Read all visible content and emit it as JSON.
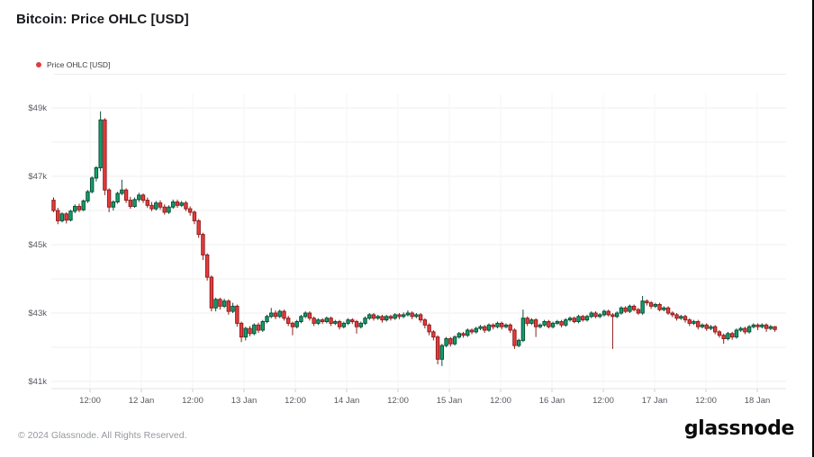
{
  "page": {
    "title": "Bitcoin: Price OHLC [USD]"
  },
  "legend": {
    "label": "Price OHLC [USD]"
  },
  "footer": {
    "copyright": "© 2024 Glassnode. All Rights Reserved.",
    "brand": "glassnode"
  },
  "chart_data": {
    "type": "candlestick",
    "title": "Bitcoin: Price OHLC [USD]",
    "units": "USD, values in thousands (k)",
    "interval": "1 hour",
    "start_time": "11 Jan 03:00",
    "y_ticks": [
      "$49k",
      "$47k",
      "$45k",
      "$43k",
      "$41k"
    ],
    "y_tick_values": [
      49,
      47,
      45,
      43,
      41
    ],
    "ylim": [
      40.8,
      49.3
    ],
    "grid": "on",
    "legend_position": "top-left",
    "x_ticks": [
      "12:00",
      "12 Jan",
      "12:00",
      "13 Jan",
      "12:00",
      "14 Jan",
      "12:00",
      "15 Jan",
      "12:00",
      "16 Jan",
      "12:00",
      "17 Jan",
      "12:00",
      "18 Jan"
    ],
    "colors": {
      "up_fill": "#149f6d",
      "up_border": "#0b5038",
      "down_fill": "#e83c3c",
      "down_border": "#8f1e1e",
      "legend_dot": "#e13c3c"
    },
    "candles": [
      [
        46.3,
        46.38,
        45.95,
        46.0
      ],
      [
        46.0,
        46.08,
        45.6,
        45.7
      ],
      [
        45.7,
        45.95,
        45.65,
        45.9
      ],
      [
        45.9,
        45.95,
        45.62,
        45.72
      ],
      [
        45.72,
        46.02,
        45.68,
        45.98
      ],
      [
        45.98,
        46.18,
        45.92,
        46.12
      ],
      [
        46.12,
        46.2,
        45.95,
        46.02
      ],
      [
        46.02,
        46.32,
        45.98,
        46.28
      ],
      [
        46.28,
        46.6,
        46.22,
        46.55
      ],
      [
        46.55,
        47.0,
        46.5,
        46.95
      ],
      [
        46.95,
        47.3,
        46.85,
        47.25
      ],
      [
        47.25,
        48.9,
        47.15,
        48.65
      ],
      [
        48.65,
        48.7,
        46.45,
        46.6
      ],
      [
        46.6,
        46.65,
        45.95,
        46.1
      ],
      [
        46.1,
        46.3,
        46.0,
        46.25
      ],
      [
        46.25,
        46.55,
        46.2,
        46.5
      ],
      [
        46.5,
        46.9,
        46.45,
        46.6
      ],
      [
        46.6,
        46.65,
        46.22,
        46.3
      ],
      [
        46.3,
        46.4,
        46.05,
        46.12
      ],
      [
        46.12,
        46.38,
        46.08,
        46.32
      ],
      [
        46.32,
        46.52,
        46.25,
        46.45
      ],
      [
        46.45,
        46.5,
        46.22,
        46.3
      ],
      [
        46.3,
        46.38,
        46.08,
        46.15
      ],
      [
        46.15,
        46.25,
        45.98,
        46.05
      ],
      [
        46.05,
        46.28,
        46.0,
        46.22
      ],
      [
        46.22,
        46.3,
        46.02,
        46.1
      ],
      [
        46.1,
        46.18,
        45.88,
        45.95
      ],
      [
        45.95,
        46.15,
        45.9,
        46.1
      ],
      [
        46.1,
        46.32,
        46.05,
        46.25
      ],
      [
        46.25,
        46.32,
        46.08,
        46.15
      ],
      [
        46.15,
        46.28,
        46.1,
        46.22
      ],
      [
        46.22,
        46.28,
        45.98,
        46.05
      ],
      [
        46.05,
        46.12,
        45.85,
        45.95
      ],
      [
        45.95,
        46.0,
        45.6,
        45.7
      ],
      [
        45.7,
        45.75,
        45.2,
        45.3
      ],
      [
        45.3,
        45.35,
        44.55,
        44.7
      ],
      [
        44.7,
        44.75,
        43.95,
        44.05
      ],
      [
        44.05,
        44.1,
        43.05,
        43.15
      ],
      [
        43.15,
        43.45,
        43.05,
        43.4
      ],
      [
        43.4,
        43.45,
        43.1,
        43.2
      ],
      [
        43.2,
        43.42,
        43.15,
        43.35
      ],
      [
        43.35,
        43.4,
        42.95,
        43.05
      ],
      [
        43.05,
        43.3,
        43.0,
        43.2
      ],
      [
        43.2,
        43.25,
        42.6,
        42.7
      ],
      [
        42.7,
        42.75,
        42.15,
        42.3
      ],
      [
        42.3,
        42.6,
        42.2,
        42.55
      ],
      [
        42.55,
        42.62,
        42.32,
        42.4
      ],
      [
        42.4,
        42.7,
        42.35,
        42.65
      ],
      [
        42.65,
        42.72,
        42.42,
        42.5
      ],
      [
        42.5,
        42.8,
        42.45,
        42.75
      ],
      [
        42.75,
        42.95,
        42.7,
        42.9
      ],
      [
        42.9,
        43.15,
        42.85,
        43.0
      ],
      [
        43.0,
        43.08,
        42.82,
        42.9
      ],
      [
        42.9,
        43.1,
        42.85,
        43.05
      ],
      [
        43.05,
        43.1,
        42.78,
        42.85
      ],
      [
        42.85,
        42.92,
        42.62,
        42.7
      ],
      [
        42.7,
        42.75,
        42.35,
        42.6
      ],
      [
        42.6,
        42.8,
        42.55,
        42.75
      ],
      [
        42.75,
        42.95,
        42.7,
        42.9
      ],
      [
        42.9,
        43.05,
        42.85,
        43.0
      ],
      [
        43.0,
        43.05,
        42.78,
        42.85
      ],
      [
        42.85,
        42.9,
        42.62,
        42.7
      ],
      [
        42.7,
        42.85,
        42.65,
        42.8
      ],
      [
        42.8,
        42.85,
        42.68,
        42.75
      ],
      [
        42.75,
        42.9,
        42.7,
        42.85
      ],
      [
        42.85,
        42.9,
        42.62,
        42.7
      ],
      [
        42.7,
        42.8,
        42.65,
        42.75
      ],
      [
        42.75,
        42.8,
        42.52,
        42.6
      ],
      [
        42.6,
        42.75,
        42.55,
        42.7
      ],
      [
        42.7,
        42.85,
        42.65,
        42.8
      ],
      [
        42.8,
        42.85,
        42.68,
        42.75
      ],
      [
        42.75,
        42.8,
        42.4,
        42.6
      ],
      [
        42.6,
        42.75,
        42.55,
        42.7
      ],
      [
        42.7,
        42.9,
        42.65,
        42.85
      ],
      [
        42.85,
        43.0,
        42.8,
        42.95
      ],
      [
        42.95,
        43.0,
        42.78,
        42.85
      ],
      [
        42.85,
        42.95,
        42.8,
        42.9
      ],
      [
        42.9,
        42.95,
        42.72,
        42.8
      ],
      [
        42.8,
        42.95,
        42.75,
        42.9
      ],
      [
        42.9,
        42.95,
        42.78,
        42.85
      ],
      [
        42.85,
        43.0,
        42.8,
        42.95
      ],
      [
        42.95,
        43.0,
        42.82,
        42.9
      ],
      [
        42.9,
        43.02,
        42.85,
        42.95
      ],
      [
        42.95,
        43.08,
        42.9,
        43.0
      ],
      [
        43.0,
        43.05,
        42.82,
        42.9
      ],
      [
        42.9,
        43.0,
        42.85,
        42.95
      ],
      [
        42.95,
        43.0,
        42.72,
        42.8
      ],
      [
        42.8,
        42.85,
        42.55,
        42.65
      ],
      [
        42.65,
        42.7,
        42.35,
        42.45
      ],
      [
        42.45,
        42.5,
        42.2,
        42.3
      ],
      [
        42.3,
        42.35,
        41.5,
        41.65
      ],
      [
        41.65,
        42.1,
        41.45,
        42.05
      ],
      [
        42.05,
        42.3,
        42.0,
        42.25
      ],
      [
        42.25,
        42.3,
        42.02,
        42.1
      ],
      [
        42.1,
        42.35,
        42.05,
        42.3
      ],
      [
        42.3,
        42.45,
        42.25,
        42.4
      ],
      [
        42.4,
        42.45,
        42.28,
        42.35
      ],
      [
        42.35,
        42.55,
        42.3,
        42.5
      ],
      [
        42.5,
        42.55,
        42.38,
        42.45
      ],
      [
        42.45,
        42.6,
        42.4,
        42.55
      ],
      [
        42.55,
        42.65,
        42.5,
        42.6
      ],
      [
        42.6,
        42.65,
        42.42,
        42.5
      ],
      [
        42.5,
        42.7,
        42.45,
        42.65
      ],
      [
        42.65,
        42.7,
        42.52,
        42.6
      ],
      [
        42.6,
        42.75,
        42.55,
        42.7
      ],
      [
        42.7,
        42.75,
        42.52,
        42.6
      ],
      [
        42.6,
        42.7,
        42.55,
        42.65
      ],
      [
        42.65,
        42.7,
        42.42,
        42.5
      ],
      [
        42.5,
        42.55,
        41.95,
        42.05
      ],
      [
        42.05,
        42.25,
        42.0,
        42.2
      ],
      [
        42.2,
        43.1,
        42.15,
        42.85
      ],
      [
        42.85,
        42.9,
        42.62,
        42.7
      ],
      [
        42.7,
        42.85,
        42.65,
        42.8
      ],
      [
        42.8,
        42.85,
        42.3,
        42.6
      ],
      [
        42.6,
        42.7,
        42.55,
        42.65
      ],
      [
        42.65,
        42.8,
        42.6,
        42.75
      ],
      [
        42.75,
        42.8,
        42.55,
        42.6
      ],
      [
        42.6,
        42.75,
        42.55,
        42.7
      ],
      [
        42.7,
        42.8,
        42.65,
        42.75
      ],
      [
        42.75,
        42.8,
        42.58,
        42.65
      ],
      [
        42.65,
        42.85,
        42.6,
        42.8
      ],
      [
        42.8,
        42.9,
        42.75,
        42.85
      ],
      [
        42.85,
        42.9,
        42.7,
        42.75
      ],
      [
        42.75,
        42.95,
        42.7,
        42.9
      ],
      [
        42.9,
        42.95,
        42.75,
        42.8
      ],
      [
        42.8,
        42.95,
        42.75,
        42.9
      ],
      [
        42.9,
        43.05,
        42.85,
        43.0
      ],
      [
        43.0,
        43.05,
        42.85,
        42.9
      ],
      [
        42.9,
        43.0,
        42.85,
        42.95
      ],
      [
        42.95,
        43.1,
        42.9,
        43.05
      ],
      [
        43.05,
        43.1,
        42.9,
        42.95
      ],
      [
        42.95,
        43.0,
        41.95,
        42.9
      ],
      [
        42.9,
        43.05,
        42.85,
        43.0
      ],
      [
        43.0,
        43.2,
        42.95,
        43.15
      ],
      [
        43.15,
        43.2,
        43.0,
        43.05
      ],
      [
        43.05,
        43.25,
        43.0,
        43.2
      ],
      [
        43.2,
        43.25,
        43.05,
        43.1
      ],
      [
        43.1,
        43.15,
        42.95,
        43.0
      ],
      [
        43.0,
        43.5,
        42.95,
        43.35
      ],
      [
        43.35,
        43.4,
        43.22,
        43.3
      ],
      [
        43.3,
        43.35,
        43.12,
        43.2
      ],
      [
        43.2,
        43.3,
        43.15,
        43.25
      ],
      [
        43.25,
        43.3,
        43.05,
        43.1
      ],
      [
        43.1,
        43.2,
        43.05,
        43.15
      ],
      [
        43.15,
        43.2,
        42.95,
        43.0
      ],
      [
        43.0,
        43.05,
        42.88,
        42.95
      ],
      [
        42.95,
        43.0,
        42.78,
        42.85
      ],
      [
        42.85,
        42.95,
        42.8,
        42.9
      ],
      [
        42.9,
        42.95,
        42.72,
        42.8
      ],
      [
        42.8,
        42.85,
        42.62,
        42.7
      ],
      [
        42.7,
        42.8,
        42.65,
        42.75
      ],
      [
        42.75,
        42.8,
        42.52,
        42.6
      ],
      [
        42.6,
        42.7,
        42.55,
        42.65
      ],
      [
        42.65,
        42.7,
        42.48,
        42.55
      ],
      [
        42.55,
        42.65,
        42.5,
        42.6
      ],
      [
        42.6,
        42.65,
        42.38,
        42.45
      ],
      [
        42.45,
        42.5,
        42.28,
        42.35
      ],
      [
        42.35,
        42.4,
        42.1,
        42.25
      ],
      [
        42.25,
        42.45,
        42.2,
        42.4
      ],
      [
        42.4,
        42.45,
        42.22,
        42.3
      ],
      [
        42.3,
        42.55,
        42.25,
        42.5
      ],
      [
        42.5,
        42.6,
        42.45,
        42.55
      ],
      [
        42.55,
        42.6,
        42.38,
        42.45
      ],
      [
        42.45,
        42.65,
        42.4,
        42.6
      ],
      [
        42.6,
        42.7,
        42.55,
        42.65
      ],
      [
        42.65,
        42.7,
        42.5,
        42.6
      ],
      [
        42.6,
        42.7,
        42.55,
        42.65
      ],
      [
        42.65,
        42.7,
        42.45,
        42.55
      ],
      [
        42.55,
        42.65,
        42.5,
        42.6
      ],
      [
        42.6,
        42.62,
        42.45,
        42.52
      ]
    ]
  }
}
